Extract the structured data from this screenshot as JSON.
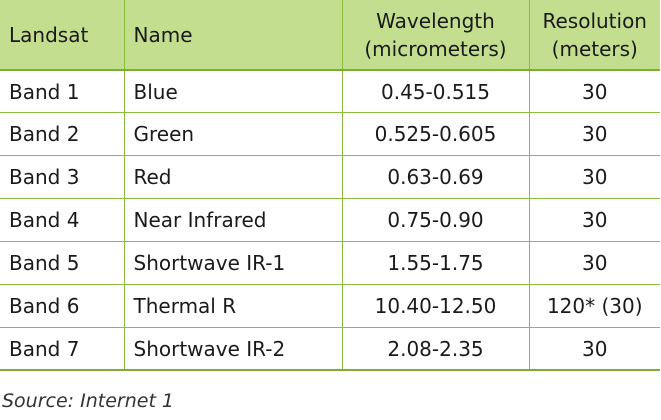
{
  "table": {
    "headers": [
      {
        "lines": [
          "Landsat"
        ]
      },
      {
        "lines": [
          "Name"
        ]
      },
      {
        "lines": [
          "Wavelength",
          "(micrometers)"
        ]
      },
      {
        "lines": [
          "Resolution",
          "(meters)"
        ]
      }
    ],
    "rows": [
      [
        "Band 1",
        "Blue",
        "0.45-0.515",
        "30"
      ],
      [
        "Band 2",
        "Green",
        "0.525-0.605",
        "30"
      ],
      [
        "Band 3",
        "Red",
        "0.63-0.69",
        "30"
      ],
      [
        "Band 4",
        "Near Infrared",
        "0.75-0.90",
        "30"
      ],
      [
        "Band 5",
        "Shortwave IR-1",
        "1.55-1.75",
        "30"
      ],
      [
        "Band 6",
        "Thermal R",
        "10.40-12.50",
        "120* (30)"
      ],
      [
        "Band 7",
        "Shortwave IR-2",
        "2.08-2.35",
        "30"
      ]
    ]
  },
  "source": "Source: Internet 1",
  "colors": {
    "header_bg": "#c3de8e",
    "grid_line": "#8bbd3c"
  }
}
